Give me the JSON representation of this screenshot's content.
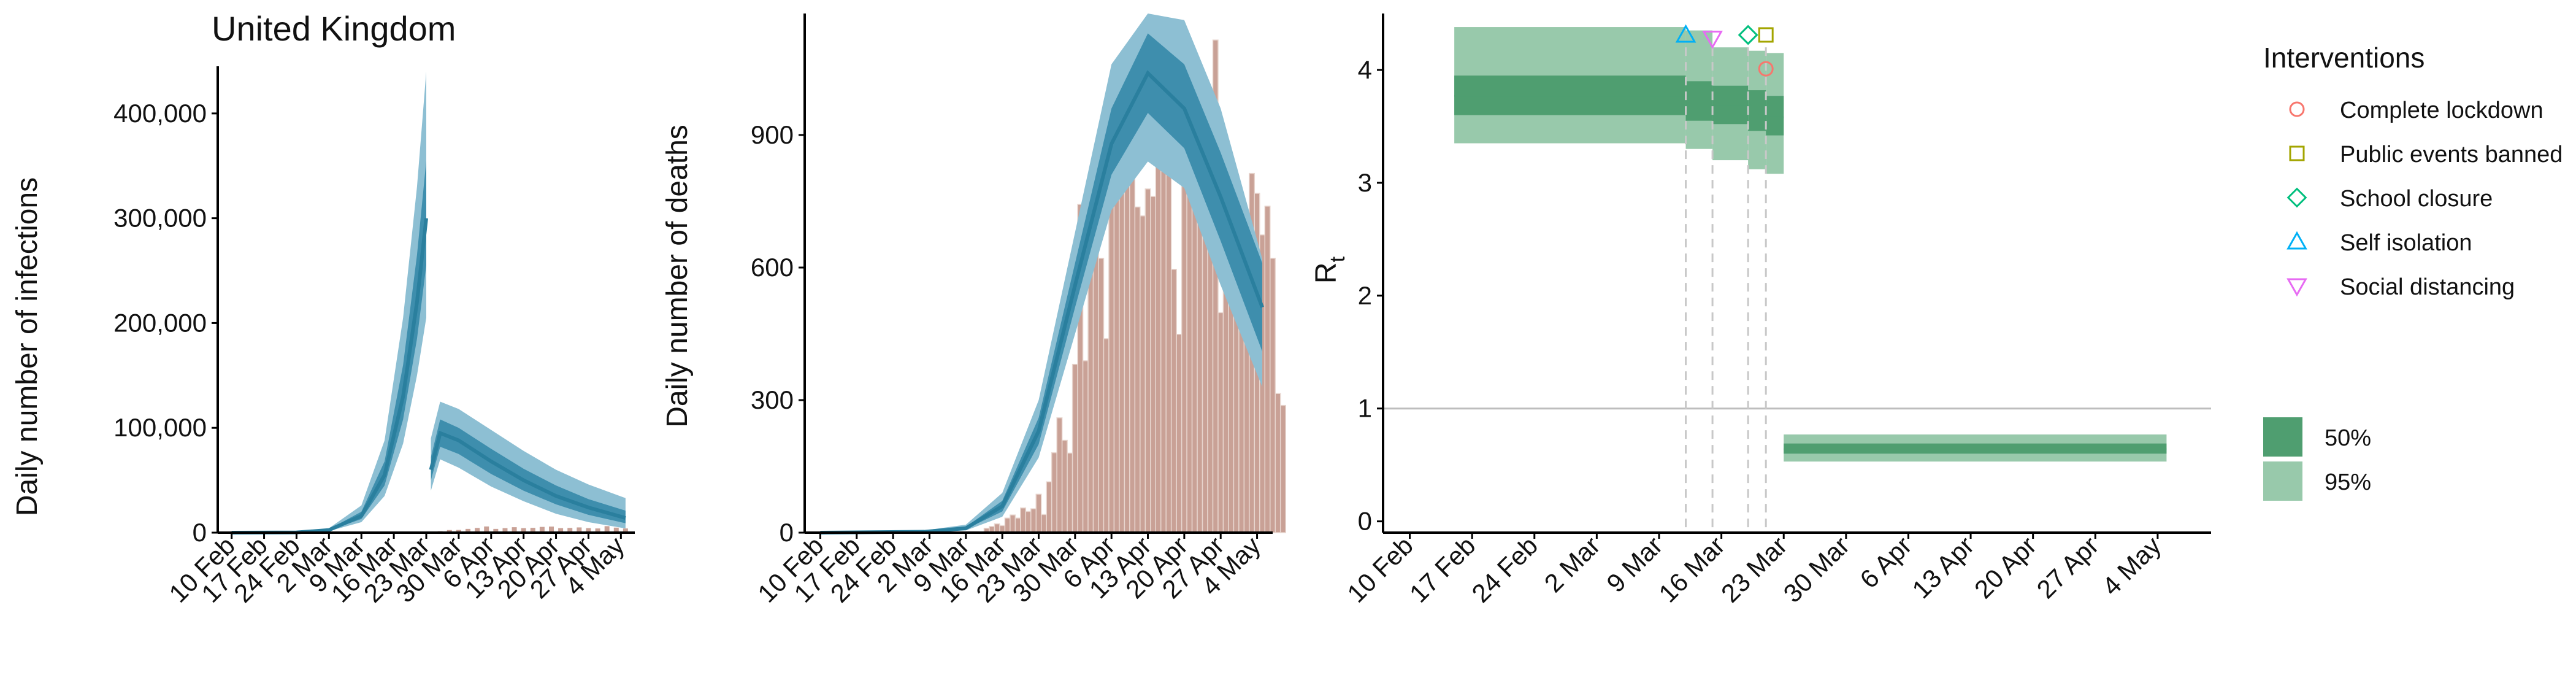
{
  "title": "United Kingdom",
  "colors": {
    "infection_line": "#2a7f9e",
    "infection_band50": "#3e8ead",
    "infection_band95": "#8dbfd3",
    "death_bar": "#c9a196",
    "death_bar_edge": "#e8d6cf",
    "rt_band50": "#4f9e70",
    "rt_band95": "#98c9ab",
    "complete_lockdown": "#f8766d",
    "public_events_banned": "#a3a500",
    "school_closure": "#00bf7d",
    "self_isolation": "#00b0f6",
    "social_distancing": "#e76bf3"
  },
  "x_tick_labels": [
    "10 Feb",
    "17 Feb",
    "24 Feb",
    "2 Mar",
    "9 Mar",
    "16 Mar",
    "23 Mar",
    "30 Mar",
    "6 Apr",
    "13 Apr",
    "20 Apr",
    "27 Apr",
    "4 May"
  ],
  "legend": {
    "interventions_title": "Interventions",
    "interventions": [
      {
        "label": "Complete lockdown",
        "shape": "circle",
        "color": "#f8766d"
      },
      {
        "label": "Public events banned",
        "shape": "square",
        "color": "#a3a500"
      },
      {
        "label": "School closure",
        "shape": "diamond",
        "color": "#00bf7d"
      },
      {
        "label": "Self isolation",
        "shape": "triangle-up",
        "color": "#00b0f6"
      },
      {
        "label": "Social distancing",
        "shape": "triangle-down",
        "color": "#e76bf3"
      }
    ],
    "bands": [
      {
        "label": "50%",
        "color": "#4f9e70"
      },
      {
        "label": "95%",
        "color": "#98c9ab"
      }
    ]
  },
  "chart_data": [
    {
      "type": "area",
      "title": "United Kingdom",
      "xlabel": "",
      "ylabel": "Daily number of infections",
      "x_range": [
        "2020-02-07",
        "2020-05-07"
      ],
      "ylim": [
        0,
        445000
      ],
      "y_ticks": [
        0,
        100000,
        200000,
        300000,
        400000
      ],
      "y_tick_labels": [
        "0",
        "100,000",
        "200,000",
        "300,000",
        "400,000"
      ],
      "series_pre": [
        {
          "date": "2020-02-10",
          "mean": 0,
          "lo50": 0,
          "hi50": 0,
          "lo95": 0,
          "hi95": 0
        },
        {
          "date": "2020-02-24",
          "mean": 200,
          "lo50": 150,
          "hi50": 260,
          "lo95": 100,
          "hi95": 350
        },
        {
          "date": "2020-03-02",
          "mean": 2500,
          "lo50": 2000,
          "hi50": 3200,
          "lo95": 1500,
          "hi95": 4200
        },
        {
          "date": "2020-03-09",
          "mean": 16000,
          "lo50": 13000,
          "hi50": 20000,
          "lo95": 10000,
          "hi95": 26000
        },
        {
          "date": "2020-03-14",
          "mean": 55000,
          "lo50": 45000,
          "hi50": 68000,
          "lo95": 35000,
          "hi95": 88000
        },
        {
          "date": "2020-03-18",
          "mean": 130000,
          "lo50": 108000,
          "hi50": 160000,
          "lo95": 85000,
          "hi95": 205000
        },
        {
          "date": "2020-03-21",
          "mean": 220000,
          "lo50": 185000,
          "hi50": 265000,
          "lo95": 150000,
          "hi95": 330000
        },
        {
          "date": "2020-03-23",
          "mean": 300000,
          "lo50": 255000,
          "hi50": 355000,
          "lo95": 205000,
          "hi95": 440000
        }
      ],
      "series_post": [
        {
          "date": "2020-03-24",
          "mean": 60000,
          "lo50": 50000,
          "hi50": 72000,
          "lo95": 40000,
          "hi95": 90000
        },
        {
          "date": "2020-03-26",
          "mean": 95000,
          "lo50": 82000,
          "hi50": 108000,
          "lo95": 70000,
          "hi95": 125000
        },
        {
          "date": "2020-03-30",
          "mean": 88000,
          "lo50": 75000,
          "hi50": 100000,
          "lo95": 62000,
          "hi95": 118000
        },
        {
          "date": "2020-04-06",
          "mean": 68000,
          "lo50": 56000,
          "hi50": 80000,
          "lo95": 44000,
          "hi95": 98000
        },
        {
          "date": "2020-04-13",
          "mean": 50000,
          "lo50": 40000,
          "hi50": 61000,
          "lo95": 30000,
          "hi95": 78000
        },
        {
          "date": "2020-04-20",
          "mean": 35000,
          "lo50": 27000,
          "hi50": 45000,
          "lo95": 18000,
          "hi95": 60000
        },
        {
          "date": "2020-04-27",
          "mean": 24000,
          "lo50": 17000,
          "hi50": 32000,
          "lo95": 10000,
          "hi95": 46000
        },
        {
          "date": "2020-05-05",
          "mean": 14000,
          "lo50": 9000,
          "hi50": 21000,
          "lo95": 4000,
          "hi95": 33000
        }
      ],
      "reported_cases": [
        {
          "date": "2020-03-24",
          "value": 600
        },
        {
          "date": "2020-03-26",
          "value": 1400
        },
        {
          "date": "2020-03-28",
          "value": 2500
        },
        {
          "date": "2020-03-30",
          "value": 2600
        },
        {
          "date": "2020-04-01",
          "value": 3600
        },
        {
          "date": "2020-04-03",
          "value": 4500
        },
        {
          "date": "2020-04-05",
          "value": 5900
        },
        {
          "date": "2020-04-07",
          "value": 3600
        },
        {
          "date": "2020-04-09",
          "value": 4300
        },
        {
          "date": "2020-04-11",
          "value": 5200
        },
        {
          "date": "2020-04-13",
          "value": 4300
        },
        {
          "date": "2020-04-15",
          "value": 4600
        },
        {
          "date": "2020-04-17",
          "value": 5500
        },
        {
          "date": "2020-04-19",
          "value": 5800
        },
        {
          "date": "2020-04-21",
          "value": 4300
        },
        {
          "date": "2020-04-23",
          "value": 4500
        },
        {
          "date": "2020-04-25",
          "value": 5000
        },
        {
          "date": "2020-04-27",
          "value": 4300
        },
        {
          "date": "2020-04-29",
          "value": 4000
        },
        {
          "date": "2020-05-01",
          "value": 6200
        },
        {
          "date": "2020-05-03",
          "value": 4800
        },
        {
          "date": "2020-05-05",
          "value": 4000
        }
      ]
    },
    {
      "type": "bar",
      "xlabel": "",
      "ylabel": "Daily number of deaths",
      "x_range": [
        "2020-02-07",
        "2020-05-07"
      ],
      "ylim": [
        0,
        1175
      ],
      "y_ticks": [
        0,
        300,
        600,
        900
      ],
      "y_tick_labels": [
        "0",
        "300",
        "600",
        "900"
      ],
      "deaths_start_date": "2020-03-06",
      "deaths": [
        1,
        0,
        2,
        0,
        2,
        2,
        1,
        10,
        14,
        20,
        16,
        33,
        40,
        33,
        56,
        48,
        54,
        87,
        41,
        115,
        181,
        260,
        209,
        180,
        381,
        743,
        389,
        684,
        708,
        621,
        439,
        786,
        938,
        881,
        980,
        917,
        737,
        717,
        778,
        761,
        861,
        847,
        888,
        596,
        449,
        828,
        763,
        1044,
        844,
        1029,
        935,
        1115,
        498,
        560,
        763,
        639,
        616,
        546,
        813,
        768,
        674,
        739,
        621,
        315,
        288
      ],
      "model": [
        {
          "date": "2020-02-10",
          "mean": 0,
          "lo50": 0,
          "hi50": 0,
          "lo95": 0,
          "hi95": 0
        },
        {
          "date": "2020-03-01",
          "mean": 2,
          "lo50": 1,
          "hi50": 3,
          "lo95": 1,
          "hi95": 5
        },
        {
          "date": "2020-03-09",
          "mean": 10,
          "lo50": 8,
          "hi50": 13,
          "lo95": 5,
          "hi95": 18
        },
        {
          "date": "2020-03-16",
          "mean": 60,
          "lo50": 48,
          "hi50": 72,
          "lo95": 36,
          "hi95": 90
        },
        {
          "date": "2020-03-23",
          "mean": 230,
          "lo50": 200,
          "hi50": 260,
          "lo95": 170,
          "hi95": 300
        },
        {
          "date": "2020-03-30",
          "mean": 560,
          "lo50": 510,
          "hi50": 610,
          "lo95": 450,
          "hi95": 680
        },
        {
          "date": "2020-04-06",
          "mean": 880,
          "lo50": 810,
          "hi50": 960,
          "lo95": 730,
          "hi95": 1060
        },
        {
          "date": "2020-04-13",
          "mean": 1040,
          "lo50": 950,
          "hi50": 1130,
          "lo95": 840,
          "hi95": 1175
        },
        {
          "date": "2020-04-20",
          "mean": 960,
          "lo50": 870,
          "hi50": 1060,
          "lo95": 780,
          "hi95": 1160
        },
        {
          "date": "2020-04-27",
          "mean": 760,
          "lo50": 660,
          "hi50": 860,
          "lo95": 560,
          "hi95": 960
        },
        {
          "date": "2020-05-05",
          "mean": 510,
          "lo50": 410,
          "hi50": 610,
          "lo95": 330,
          "hi95": 620
        }
      ]
    },
    {
      "type": "area",
      "xlabel": "",
      "ylabel": "R",
      "ylabel_subscript": "t",
      "x_range": [
        "2020-02-07",
        "2020-05-10"
      ],
      "ylim": [
        -0.1,
        4.5
      ],
      "y_ticks": [
        0,
        1,
        2,
        3,
        4
      ],
      "y_tick_labels": [
        "0",
        "1",
        "2",
        "3",
        "4"
      ],
      "reference_line": 1,
      "rt_segments": [
        {
          "start": "2020-02-15",
          "end": "2020-03-12",
          "mean": 3.77,
          "lo50": 3.6,
          "hi50": 3.95,
          "lo95": 3.35,
          "hi95": 4.38
        },
        {
          "start": "2020-03-12",
          "end": "2020-03-15",
          "mean": 3.72,
          "lo50": 3.55,
          "hi50": 3.9,
          "lo95": 3.3,
          "hi95": 4.35
        },
        {
          "start": "2020-03-15",
          "end": "2020-03-19",
          "mean": 3.68,
          "lo50": 3.52,
          "hi50": 3.86,
          "lo95": 3.2,
          "hi95": 4.2
        },
        {
          "start": "2020-03-19",
          "end": "2020-03-21",
          "mean": 3.63,
          "lo50": 3.46,
          "hi50": 3.82,
          "lo95": 3.12,
          "hi95": 4.17
        },
        {
          "start": "2020-03-21",
          "end": "2020-03-23",
          "mean": 3.58,
          "lo50": 3.42,
          "hi50": 3.77,
          "lo95": 3.08,
          "hi95": 4.15
        },
        {
          "start": "2020-03-23",
          "end": "2020-05-05",
          "mean": 0.64,
          "lo50": 0.6,
          "hi50": 0.69,
          "lo95": 0.53,
          "hi95": 0.77
        }
      ],
      "interventions": [
        {
          "key": "self_isolation",
          "date": "2020-03-12",
          "y": 4.31
        },
        {
          "key": "social_distancing",
          "date": "2020-03-15",
          "y": 4.28
        },
        {
          "key": "school_closure",
          "date": "2020-03-19",
          "y": 4.31
        },
        {
          "key": "public_events_banned",
          "date": "2020-03-21",
          "y": 4.31
        },
        {
          "key": "complete_lockdown",
          "date": "2020-03-21",
          "y": 4.01
        }
      ]
    }
  ]
}
